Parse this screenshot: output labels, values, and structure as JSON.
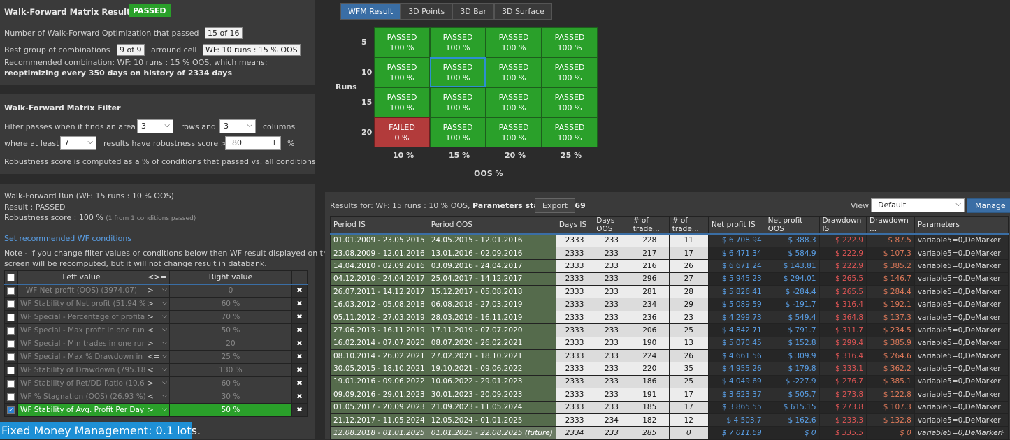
{
  "matrix_result": {
    "title": "Walk-Forward Matrix Result :",
    "status": "PASSED",
    "line1_label": "Number of Walk-Forward Optimization that passed",
    "line1_value": "15 of 16",
    "line2_label": "Best group of combinations",
    "line2_value": "9 of 9",
    "line2_mid": "arround cell",
    "line2_cell": "WF: 10 runs : 15 % OOS",
    "line3": "Recommended combination: WF: 10 runs : 15 % OOS, which means:",
    "line4": "reoptimizing every 350 days on history of 2334 days"
  },
  "filter": {
    "title": "Walk-Forward Matrix Filter",
    "passes_label": "Filter passes when it finds an area of",
    "rows_value": "3",
    "rows_label": "rows and",
    "cols_value": "3",
    "cols_label": "columns",
    "where_label": "where at least",
    "atleast_value": "7",
    "results_label": "results have robustness score >=",
    "score_value": "80",
    "score_unit": "%",
    "note": "Robustness score is computed as a % of conditions that passed vs. all conditions"
  },
  "run": {
    "title": "Walk-Forward Run (WF: 15 runs : 10 % OOS)",
    "result": "Result : PASSED",
    "robust_label": "Robustness score : 100 %",
    "robust_small": "(1 from 1 conditions passed)",
    "link": "Set recommended WF conditions",
    "note1": "Note - if you change filter values or conditions below then WF result displayed on this",
    "note2": "screen will be recomputed, but it will not change result in databank."
  },
  "conditions": {
    "headers": [
      "Left value",
      "<>=",
      "Right value"
    ],
    "rows": [
      {
        "left": "WF Net profit (OOS) (3974.07)",
        "op": ">",
        "right": "0",
        "checked": false
      },
      {
        "left": "WF Stability of Net profit (51.94 %)",
        "op": ">",
        "right": "60 %",
        "checked": false
      },
      {
        "left": "WF Special - Percentage of profita...",
        "op": ">",
        "right": "70 %",
        "checked": false
      },
      {
        "left": "WF Special - Max profit in one run ...",
        "op": "<",
        "right": "50 %",
        "checked": false
      },
      {
        "left": "WF Special - Min trades in one run ...",
        "op": ">",
        "right": "20",
        "checked": false
      },
      {
        "left": "WF Special - Max % Drawdown in ...",
        "op": "<=",
        "right": "25 %",
        "checked": false
      },
      {
        "left": "WF Stability of Drawdown (795.18 ...",
        "op": "<",
        "right": "130 %",
        "checked": false
      },
      {
        "left": "WF Stability of Ret/DD Ratio (10.61...",
        "op": ">",
        "right": "60 %",
        "checked": false
      },
      {
        "left": "WF % Stagnation (OOS) (26.93 %)",
        "op": "<",
        "right": "30 %",
        "checked": false
      },
      {
        "left": "WF Stability of Avg. Profit Per Day (...",
        "op": ">",
        "right": "50 %",
        "checked": true
      }
    ]
  },
  "money_mgmt": "Fixed Money Management: 0.1 lots.",
  "tabs": [
    "WFM Result",
    "3D Points",
    "3D Bar",
    "3D Surface"
  ],
  "wfm": {
    "runs_label": "Runs",
    "oos_label": "OOS %",
    "row_labels": [
      "5",
      "10",
      "15",
      "20"
    ],
    "col_labels": [
      "10 %",
      "15 %",
      "20 %",
      "25 %"
    ],
    "cells": [
      [
        {
          "s": "PASSED",
          "v": "100 %"
        },
        {
          "s": "PASSED",
          "v": "100 %"
        },
        {
          "s": "PASSED",
          "v": "100 %"
        },
        {
          "s": "PASSED",
          "v": "100 %"
        }
      ],
      [
        {
          "s": "PASSED",
          "v": "100 %"
        },
        {
          "s": "PASSED",
          "v": "100 %"
        },
        {
          "s": "PASSED",
          "v": "100 %"
        },
        {
          "s": "PASSED",
          "v": "100 %"
        }
      ],
      [
        {
          "s": "PASSED",
          "v": "100 %"
        },
        {
          "s": "PASSED",
          "v": "100 %"
        },
        {
          "s": "PASSED",
          "v": "100 %"
        },
        {
          "s": "PASSED",
          "v": "100 %"
        }
      ],
      [
        {
          "s": "FAILED",
          "v": "0 %"
        },
        {
          "s": "PASSED",
          "v": "100 %"
        },
        {
          "s": "PASSED",
          "v": "100 %"
        },
        {
          "s": "PASSED",
          "v": "100 %"
        }
      ]
    ]
  },
  "results": {
    "label_prefix": "Results for: WF: 15 runs : 10 % OOS,",
    "label_bold": "Parameters stability: 0.69",
    "export": "Export",
    "view_label": "View",
    "view_value": "Default",
    "manage": "Manage",
    "headers": [
      "Period IS",
      "Period OOS",
      "Days IS",
      "Days OOS",
      "# of trade...",
      "# of trade...",
      "Net profit IS",
      "Net profit OOS",
      "Drawdown IS",
      "Drawdown ...",
      "Parameters"
    ],
    "rows": [
      [
        "01.01.2009 - 23.05.2015",
        "24.05.2015 - 12.01.2016",
        "2333",
        "233",
        "228",
        "11",
        "$ 6 708.94",
        "$ 388.3",
        "$ 222.9",
        "$ 87.5",
        "variable5=0,DeMarker"
      ],
      [
        "23.08.2009 - 12.01.2016",
        "13.01.2016 - 02.09.2016",
        "2333",
        "233",
        "217",
        "17",
        "$ 6 471.34",
        "$ 584.9",
        "$ 222.9",
        "$ 107.3",
        "variable5=0,DeMarker"
      ],
      [
        "14.04.2010 - 02.09.2016",
        "03.09.2016 - 24.04.2017",
        "2333",
        "233",
        "216",
        "26",
        "$ 6 671.24",
        "$ 143.81",
        "$ 222.9",
        "$ 385.2",
        "variable5=0,DeMarker"
      ],
      [
        "04.12.2010 - 24.04.2017",
        "25.04.2017 - 14.12.2017",
        "2333",
        "233",
        "296",
        "27",
        "$ 5 945.23",
        "$ 294.01",
        "$ 265.5",
        "$ 146.7",
        "variable5=0,DeMarker"
      ],
      [
        "26.07.2011 - 14.12.2017",
        "15.12.2017 - 05.08.2018",
        "2333",
        "233",
        "281",
        "28",
        "$ 5 826.41",
        "$ -284.4",
        "$ 265.5",
        "$ 284.4",
        "variable5=0,DeMarker"
      ],
      [
        "16.03.2012 - 05.08.2018",
        "06.08.2018 - 27.03.2019",
        "2333",
        "233",
        "234",
        "29",
        "$ 5 089.59",
        "$ -191.7",
        "$ 316.4",
        "$ 192.1",
        "variable5=0,DeMarker"
      ],
      [
        "05.11.2012 - 27.03.2019",
        "28.03.2019 - 16.11.2019",
        "2333",
        "233",
        "236",
        "23",
        "$ 4 299.73",
        "$ 549.4",
        "$ 364.8",
        "$ 137.3",
        "variable5=0,DeMarker"
      ],
      [
        "27.06.2013 - 16.11.2019",
        "17.11.2019 - 07.07.2020",
        "2333",
        "233",
        "206",
        "25",
        "$ 4 842.71",
        "$ 791.7",
        "$ 311.7",
        "$ 234.5",
        "variable5=0,DeMarker"
      ],
      [
        "16.02.2014 - 07.07.2020",
        "08.07.2020 - 26.02.2021",
        "2333",
        "233",
        "190",
        "13",
        "$ 5 070.45",
        "$ 152.8",
        "$ 299.4",
        "$ 385.9",
        "variable5=0,DeMarker"
      ],
      [
        "08.10.2014 - 26.02.2021",
        "27.02.2021 - 18.10.2021",
        "2333",
        "233",
        "224",
        "26",
        "$ 4 661.56",
        "$ 309.9",
        "$ 316.4",
        "$ 264.6",
        "variable5=0,DeMarker"
      ],
      [
        "30.05.2015 - 18.10.2021",
        "19.10.2021 - 09.06.2022",
        "2333",
        "233",
        "220",
        "35",
        "$ 4 955.26",
        "$ 179.8",
        "$ 333.1",
        "$ 362.2",
        "variable5=0,DeMarker"
      ],
      [
        "19.01.2016 - 09.06.2022",
        "10.06.2022 - 29.01.2023",
        "2333",
        "233",
        "186",
        "25",
        "$ 4 049.69",
        "$ -227.9",
        "$ 276.7",
        "$ 385.1",
        "variable5=0,DeMarker"
      ],
      [
        "09.09.2016 - 29.01.2023",
        "30.01.2023 - 20.09.2023",
        "2333",
        "233",
        "191",
        "17",
        "$ 3 623.37",
        "$ 505.7",
        "$ 273.8",
        "$ 122.8",
        "variable5=0,DeMarker"
      ],
      [
        "01.05.2017 - 20.09.2023",
        "21.09.2023 - 11.05.2024",
        "2333",
        "233",
        "185",
        "17",
        "$ 3 865.55",
        "$ 615.15",
        "$ 273.8",
        "$ 107.3",
        "variable5=0,DeMarker"
      ],
      [
        "21.12.2017 - 11.05.2024",
        "12.05.2024 - 01.01.2025",
        "2333",
        "234",
        "182",
        "12",
        "$ 4 503.7",
        "$ 162.6",
        "$ 233.3",
        "$ 132.8",
        "variable5=0,DeMarker"
      ],
      [
        "12.08.2018 - 01.01.2025",
        "01.01.2025 - 22.08.2025 (future)",
        "2334",
        "233",
        "285",
        "0",
        "$ 7 011.69",
        "$ 0",
        "$ 335.5",
        "$ 0",
        "variable5=0,DeMarkerF"
      ]
    ]
  }
}
